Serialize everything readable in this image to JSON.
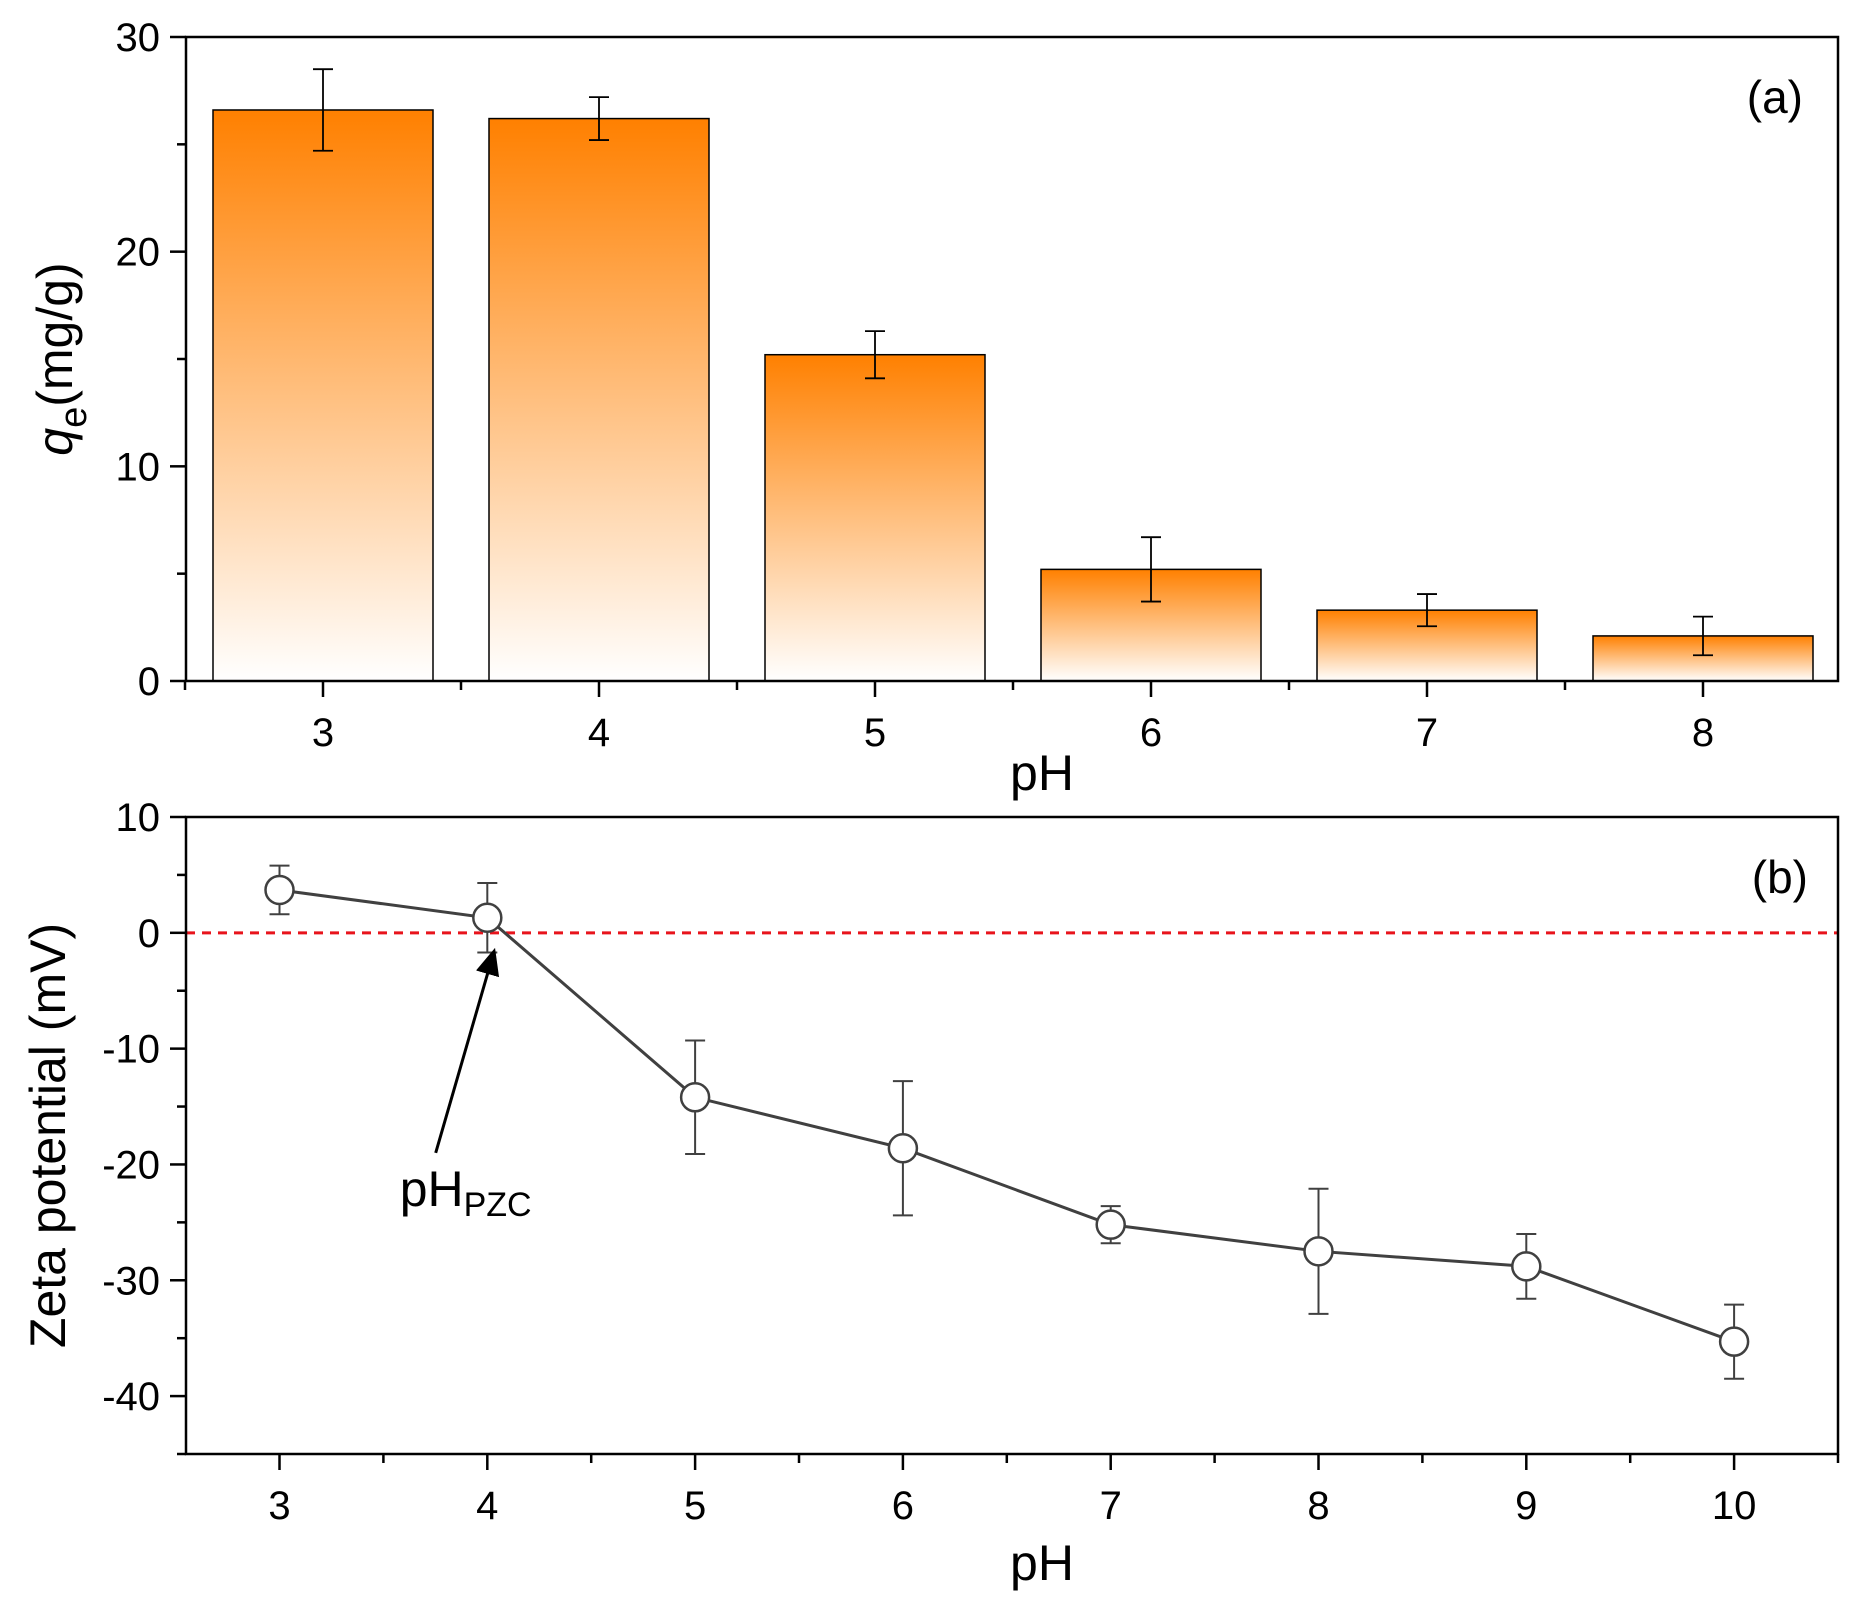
{
  "colors": {
    "bar_top": "#ff8000",
    "bar_bottom": "#ffffff",
    "line": "#404040",
    "zero_line": "#e8141c",
    "axis": "#000000"
  },
  "chart_data": [
    {
      "type": "bar",
      "panel_label": "(a)",
      "xlabel": "pH",
      "ylabel_main": "q",
      "ylabel_sub": "e",
      "ylabel_unit": "(mg/g)",
      "categories": [
        "3",
        "4",
        "5",
        "6",
        "7",
        "8"
      ],
      "values": [
        26.6,
        26.2,
        15.2,
        5.2,
        3.3,
        2.1
      ],
      "errors": [
        1.9,
        1.0,
        1.1,
        1.5,
        0.75,
        0.9
      ],
      "ylim": [
        0,
        30
      ],
      "yticks": [
        "0",
        "10",
        "20",
        "30"
      ]
    },
    {
      "type": "line",
      "panel_label": "(b)",
      "xlabel": "pH",
      "ylabel": "Zeta potential (mV)",
      "x": [
        3,
        4,
        5,
        6,
        7,
        8,
        9,
        10
      ],
      "xtick_labels": [
        "3",
        "4",
        "5",
        "6",
        "7",
        "8",
        "9",
        "10"
      ],
      "y": [
        3.7,
        1.3,
        -14.2,
        -18.6,
        -25.2,
        -27.5,
        -28.8,
        -35.3
      ],
      "errors": [
        2.1,
        3.0,
        4.9,
        5.8,
        1.6,
        5.4,
        2.8,
        3.2
      ],
      "xlim": [
        2.55,
        10.5
      ],
      "ylim": [
        -45,
        10
      ],
      "yticks": [
        "-40",
        "-30",
        "-20",
        "-10",
        "0",
        "10"
      ],
      "reference_line_y": 0,
      "annotation_main": "pH",
      "annotation_sub": "PZC",
      "annotation_x": 4.05
    }
  ]
}
